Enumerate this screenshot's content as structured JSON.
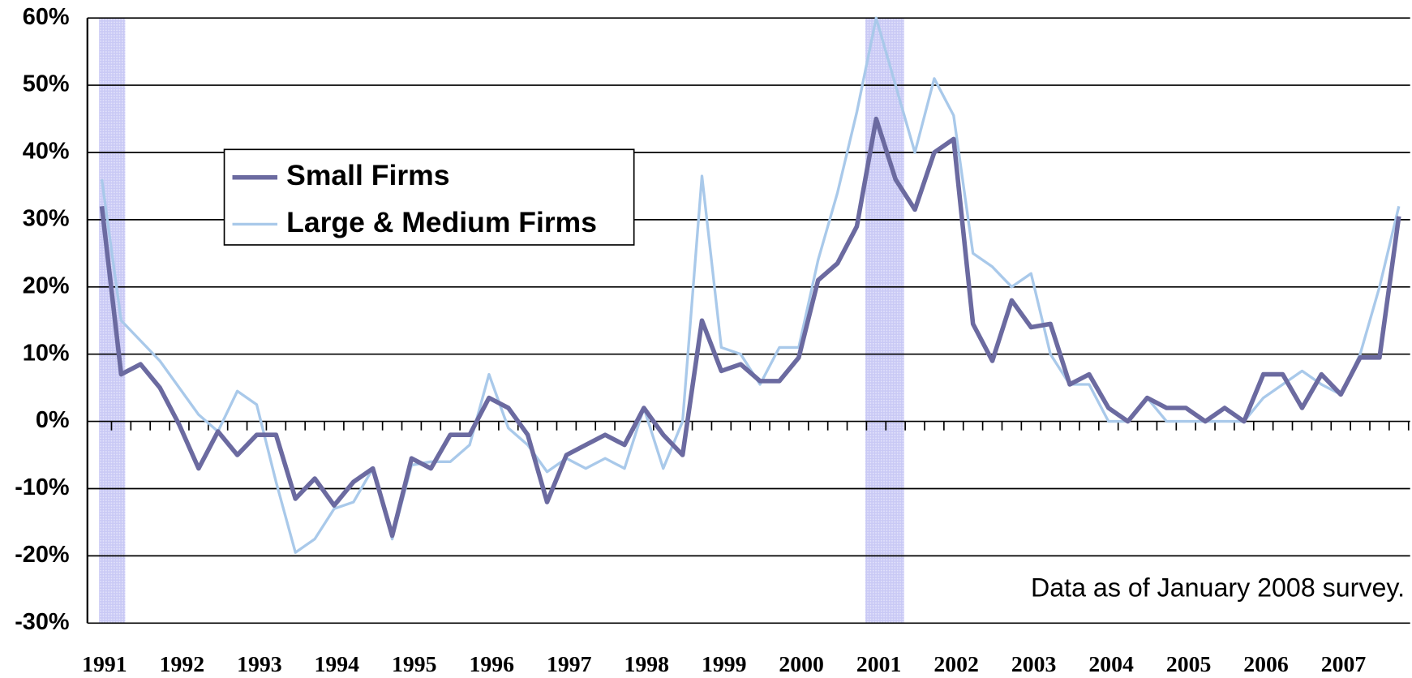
{
  "chart_data": {
    "type": "line",
    "annotation": "Data as of January 2008 survey.",
    "categories": [
      "1991",
      null,
      null,
      null,
      "1992",
      null,
      null,
      null,
      "1993",
      null,
      null,
      null,
      "1994",
      null,
      null,
      null,
      "1995",
      null,
      null,
      null,
      "1996",
      null,
      null,
      null,
      "1997",
      null,
      null,
      null,
      "1998",
      null,
      null,
      null,
      "1999",
      null,
      null,
      null,
      "2000",
      null,
      null,
      null,
      "2001",
      null,
      null,
      null,
      "2002",
      null,
      null,
      null,
      "2003",
      null,
      null,
      null,
      "2004",
      null,
      null,
      null,
      "2005",
      null,
      null,
      null,
      "2006",
      null,
      null,
      null,
      "2007",
      null,
      null,
      null
    ],
    "series": [
      {
        "name": "Small Firms",
        "color": "#6b6aa0",
        "values": [
          32,
          7,
          8.5,
          5,
          -0.5,
          -7,
          -1.5,
          -5,
          -2,
          -2,
          -11.5,
          -8.5,
          -12.5,
          -9,
          -7,
          -17,
          -5.5,
          -7,
          -2,
          -2,
          3.5,
          2,
          -2,
          -12,
          -5,
          -3.5,
          -2,
          -3.5,
          2,
          -2,
          -5,
          15,
          7.5,
          8.5,
          6,
          6,
          9.5,
          21,
          23.5,
          29,
          45,
          36,
          31.5,
          40,
          42,
          14.5,
          9,
          18,
          14,
          14.5,
          5.5,
          7,
          2,
          0,
          3.5,
          2,
          2,
          0,
          2,
          0,
          7,
          7,
          2,
          7,
          4,
          9.5,
          9.5,
          30.5
        ]
      },
      {
        "name": "Large & Medium Firms",
        "color": "#a9c9ea",
        "values": [
          36,
          15,
          12,
          9,
          5,
          1,
          -1.5,
          4.5,
          2.5,
          -9,
          -19.5,
          -17.5,
          -13,
          -12,
          -7,
          -17.5,
          -6.5,
          -6,
          -6,
          -3.5,
          7,
          -1,
          -3.5,
          -7.5,
          -5.5,
          -7,
          -5.5,
          -7,
          2,
          -7,
          0,
          36.5,
          11,
          10,
          5.5,
          11,
          11,
          24,
          34,
          46,
          60,
          50,
          40,
          51,
          45.5,
          25,
          23,
          20,
          22,
          10,
          5.5,
          5.5,
          0,
          0,
          3.5,
          0,
          0,
          0,
          0,
          0,
          3.5,
          5.5,
          7.5,
          5.5,
          4,
          10,
          20,
          32
        ]
      }
    ],
    "ylim": [
      -30,
      60
    ],
    "yticks": [
      {
        "value": -30,
        "label": "-30%"
      },
      {
        "value": -20,
        "label": "-20%"
      },
      {
        "value": -10,
        "label": "-10%"
      },
      {
        "value": 0,
        "label": "0%"
      },
      {
        "value": 10,
        "label": "10%"
      },
      {
        "value": 20,
        "label": "20%"
      },
      {
        "value": 30,
        "label": "30%"
      },
      {
        "value": 40,
        "label": "40%"
      },
      {
        "value": 50,
        "label": "50%"
      },
      {
        "value": 60,
        "label": "60%"
      }
    ],
    "grid": true
  }
}
